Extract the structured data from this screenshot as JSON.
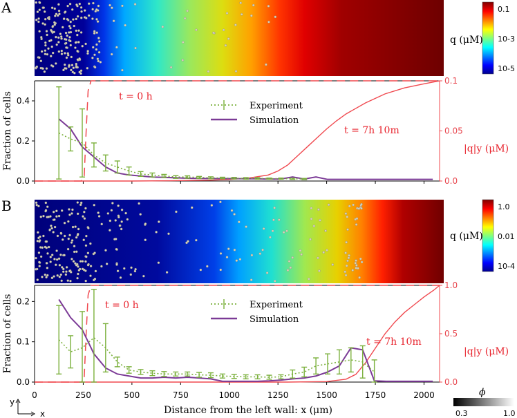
{
  "panels": {
    "a": "A",
    "b": "B"
  },
  "colorbar_a": {
    "label": "q (μM)",
    "ticks": [
      "0.1",
      "10-3",
      "10-5"
    ]
  },
  "colorbar_b": {
    "label": "q (μM)",
    "ticks": [
      "1.0",
      "0.01",
      "10-4"
    ]
  },
  "phi": {
    "label": "ϕ",
    "ticks": [
      "0.3",
      "1.0"
    ]
  },
  "xlabel": "Distance from the left wall: x (μm)",
  "xticks": [
    "0",
    "250",
    "500",
    "750",
    "1000",
    "1250",
    "1500",
    "1750",
    "2000"
  ],
  "axes_icon": {
    "y": "y",
    "x": "x"
  },
  "colors": {
    "experiment": "#7bb03c",
    "simulation": "#7b3a96",
    "red": "#f0494f"
  },
  "chart_data": [
    {
      "type": "line",
      "panel": "A",
      "ylabel": "Fraction of cells",
      "ylabel_right": "|q|y (μM)",
      "xlim": [
        0,
        2080
      ],
      "ylim": [
        0,
        0.5
      ],
      "ylim_right": [
        0,
        0.1
      ],
      "yticks": [
        "0.0",
        "0.2",
        "0.4"
      ],
      "yticks_right": [
        "0.0",
        "0.05",
        "0.1"
      ],
      "legend": [
        "Experiment",
        "Simulation"
      ],
      "annotations": [
        "t = 0 h",
        "t = 7h 10m"
      ],
      "series": [
        {
          "name": "Experiment",
          "x": [
            125,
            185,
            245,
            305,
            365,
            425,
            485,
            545,
            605,
            665,
            725,
            785,
            845,
            905,
            965,
            1025,
            1085,
            1145,
            1205,
            1265,
            1325,
            1385
          ],
          "y": [
            0.24,
            0.21,
            0.19,
            0.13,
            0.09,
            0.07,
            0.05,
            0.035,
            0.03,
            0.025,
            0.02,
            0.02,
            0.018,
            0.016,
            0.015,
            0.014,
            0.013,
            0.013,
            0.012,
            0.012,
            0.011,
            0.01
          ],
          "err": [
            0.23,
            0.06,
            0.17,
            0.06,
            0.04,
            0.03,
            0.02,
            0.012,
            0.01,
            0.008,
            0.007,
            0.006,
            0.005,
            0.005,
            0.004,
            0.004,
            0.004,
            0.004,
            0.003,
            0.003,
            0.003,
            0.003
          ]
        },
        {
          "name": "Simulation",
          "x": [
            125,
            185,
            245,
            305,
            365,
            425,
            485,
            545,
            605,
            665,
            725,
            785,
            845,
            905,
            965,
            1025,
            1085,
            1145,
            1205,
            1265,
            1325,
            1385,
            1445,
            1505,
            1565,
            1625,
            1685,
            1745,
            1805,
            1865,
            1925,
            1985,
            2045
          ],
          "y": [
            0.31,
            0.26,
            0.17,
            0.12,
            0.07,
            0.04,
            0.03,
            0.025,
            0.02,
            0.018,
            0.016,
            0.014,
            0.013,
            0.012,
            0.012,
            0.012,
            0.011,
            0.011,
            0.01,
            0.01,
            0.02,
            0.01,
            0.02,
            0.008,
            0.008,
            0.008,
            0.008,
            0.008,
            0.008,
            0.008,
            0.008,
            0.008,
            0.008
          ]
        },
        {
          "name": "t = 0 h",
          "x": [
            0,
            240,
            255,
            265,
            275,
            290,
            2080
          ],
          "y": [
            0,
            0,
            0.005,
            0.05,
            0.09,
            0.1,
            0.1
          ]
        },
        {
          "name": "t = 7h 10m",
          "x": [
            0,
            300,
            500,
            700,
            900,
            1000,
            1100,
            1200,
            1250,
            1300,
            1350,
            1400,
            1450,
            1500,
            1550,
            1600,
            1700,
            1800,
            1900,
            2000,
            2080
          ],
          "y": [
            0,
            0,
            0,
            0.0003,
            0.0008,
            0.0015,
            0.003,
            0.006,
            0.01,
            0.016,
            0.025,
            0.034,
            0.043,
            0.052,
            0.06,
            0.067,
            0.078,
            0.087,
            0.093,
            0.097,
            0.1
          ]
        }
      ]
    },
    {
      "type": "line",
      "panel": "B",
      "ylabel": "Fraction of cells",
      "ylabel_right": "|q|y (μM)",
      "xlim": [
        0,
        2080
      ],
      "ylim": [
        0,
        0.24
      ],
      "ylim_right": [
        0,
        1.0
      ],
      "yticks": [
        "0.0",
        "0.1",
        "0.2"
      ],
      "yticks_right": [
        "0.0",
        "0.5",
        "1.0"
      ],
      "legend": [
        "Experiment",
        "Simulation"
      ],
      "annotations": [
        "t = 0 h",
        "t = 7h 10m"
      ],
      "series": [
        {
          "name": "Experiment",
          "x": [
            125,
            185,
            245,
            305,
            365,
            425,
            485,
            545,
            605,
            665,
            725,
            785,
            845,
            905,
            965,
            1025,
            1085,
            1145,
            1205,
            1265,
            1325,
            1385,
            1445,
            1505,
            1565,
            1625,
            1685,
            1745
          ],
          "y": [
            0.105,
            0.075,
            0.085,
            0.11,
            0.085,
            0.05,
            0.03,
            0.025,
            0.022,
            0.02,
            0.02,
            0.02,
            0.018,
            0.017,
            0.015,
            0.014,
            0.013,
            0.013,
            0.012,
            0.013,
            0.02,
            0.025,
            0.04,
            0.045,
            0.05,
            0.055,
            0.05,
            0.025
          ],
          "err": [
            0.085,
            0.04,
            0.09,
            0.12,
            0.06,
            0.012,
            0.008,
            0.006,
            0.006,
            0.006,
            0.005,
            0.005,
            0.006,
            0.006,
            0.005,
            0.005,
            0.005,
            0.005,
            0.005,
            0.005,
            0.01,
            0.012,
            0.02,
            0.025,
            0.03,
            0.03,
            0.04,
            0.03
          ]
        },
        {
          "name": "Simulation",
          "x": [
            125,
            185,
            245,
            305,
            365,
            425,
            485,
            545,
            605,
            665,
            725,
            785,
            845,
            905,
            965,
            1025,
            1085,
            1145,
            1205,
            1265,
            1325,
            1385,
            1445,
            1505,
            1565,
            1625,
            1685,
            1745,
            1805,
            1865,
            1925,
            1985,
            2045
          ],
          "y": [
            0.205,
            0.16,
            0.13,
            0.07,
            0.035,
            0.02,
            0.015,
            0.01,
            0.01,
            0.012,
            0.01,
            0.012,
            0.01,
            0.008,
            0.002,
            0.002,
            0.002,
            0.002,
            0.003,
            0.005,
            0.008,
            0.01,
            0.015,
            0.025,
            0.04,
            0.085,
            0.08,
            0.003,
            0.002,
            0.002,
            0.002,
            0.002,
            0.002
          ]
        },
        {
          "name": "t = 0 h",
          "x": [
            0,
            240,
            255,
            265,
            275,
            290,
            2080
          ],
          "y": [
            0,
            0,
            0.05,
            0.5,
            0.9,
            1.0,
            1.0
          ]
        },
        {
          "name": "t = 7h 10m",
          "x": [
            0,
            1300,
            1500,
            1600,
            1650,
            1700,
            1750,
            1800,
            1850,
            1900,
            1950,
            2000,
            2050,
            2080
          ],
          "y": [
            0,
            0,
            0.005,
            0.03,
            0.08,
            0.2,
            0.35,
            0.5,
            0.62,
            0.72,
            0.8,
            0.88,
            0.95,
            1.0
          ]
        }
      ]
    }
  ]
}
